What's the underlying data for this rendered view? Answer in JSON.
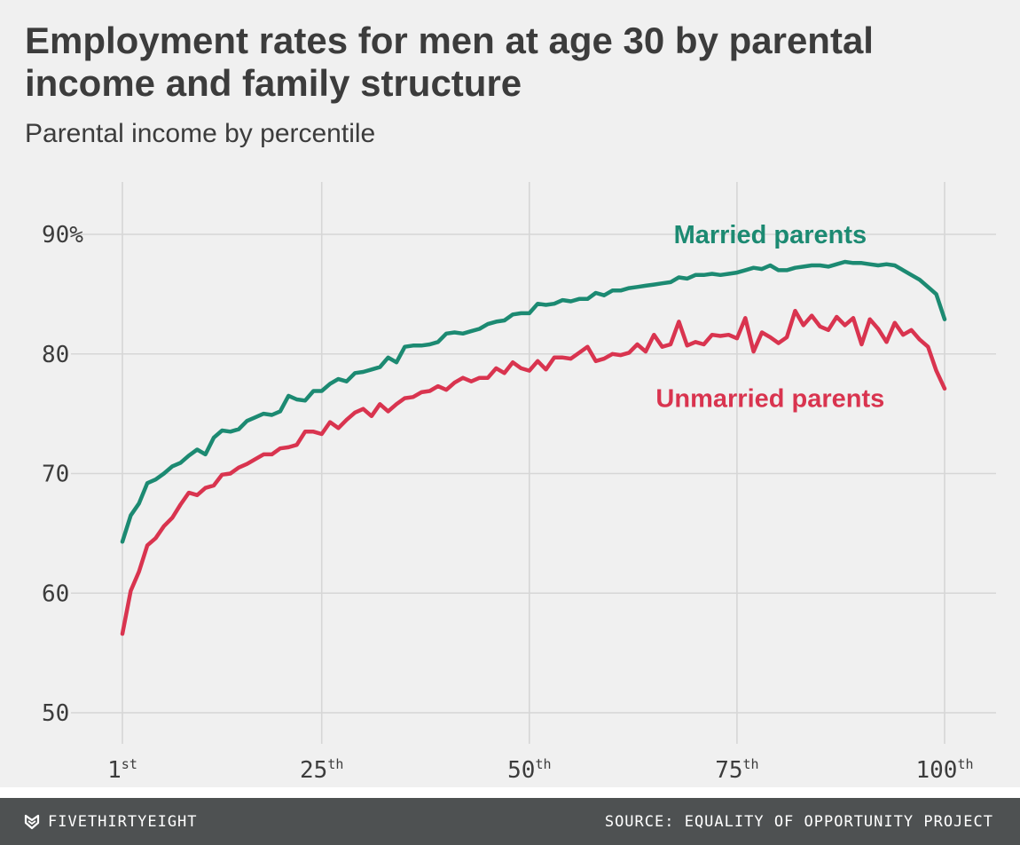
{
  "header": {
    "title": "Employment rates for men at age 30 by parental income and family structure",
    "subtitle": "Parental income by percentile"
  },
  "footer": {
    "brand": "FIVETHIRTYEIGHT",
    "brand_icon": "fivethirtyeight-logo-icon",
    "source": "SOURCE: EQUALITY OF OPPORTUNITY PROJECT"
  },
  "colors": {
    "background": "#f0f0f0",
    "grid": "#d6d6d6",
    "married": "#1c8a72",
    "unmarried": "#d9344f",
    "text": "#3c3c3c",
    "footer": "#4e5152"
  },
  "chart_data": {
    "type": "line",
    "title": "Employment rates for men at age 30 by parental income and family structure",
    "subtitle": "Parental income by percentile",
    "xlabel": "",
    "ylabel": "",
    "xlim": [
      1,
      100
    ],
    "ylim": [
      50,
      90
    ],
    "grid": true,
    "x_ticks": [
      {
        "value": 1,
        "num": "1",
        "suffix": "st"
      },
      {
        "value": 25,
        "num": "25",
        "suffix": "th"
      },
      {
        "value": 50,
        "num": "50",
        "suffix": "th"
      },
      {
        "value": 75,
        "num": "75",
        "suffix": "th"
      },
      {
        "value": 100,
        "num": "100",
        "suffix": "th"
      }
    ],
    "y_ticks": [
      {
        "value": 90,
        "label": "90%"
      },
      {
        "value": 80,
        "label": "80"
      },
      {
        "value": 70,
        "label": "70"
      },
      {
        "value": 60,
        "label": "60"
      },
      {
        "value": 50,
        "label": "50"
      }
    ],
    "x": [
      1,
      2,
      3,
      4,
      5,
      6,
      7,
      8,
      9,
      10,
      11,
      12,
      13,
      14,
      15,
      16,
      17,
      18,
      19,
      20,
      21,
      22,
      23,
      24,
      25,
      26,
      27,
      28,
      29,
      30,
      31,
      32,
      33,
      34,
      35,
      36,
      37,
      38,
      39,
      40,
      41,
      42,
      43,
      44,
      45,
      46,
      47,
      48,
      49,
      50,
      51,
      52,
      53,
      54,
      55,
      56,
      57,
      58,
      59,
      60,
      61,
      62,
      63,
      64,
      65,
      66,
      67,
      68,
      69,
      70,
      71,
      72,
      73,
      74,
      75,
      76,
      77,
      78,
      79,
      80,
      81,
      82,
      83,
      84,
      85,
      86,
      87,
      88,
      89,
      90,
      91,
      92,
      93,
      94,
      95,
      96,
      97,
      98,
      99,
      100
    ],
    "series": [
      {
        "name": "Married parents",
        "color": "#1c8a72",
        "label_anchor_x": 79,
        "label_anchor_y": 90,
        "values": [
          64.3,
          66.5,
          67.5,
          69.2,
          69.5,
          70.0,
          70.6,
          70.9,
          71.5,
          72.0,
          71.6,
          73.0,
          73.6,
          73.5,
          73.7,
          74.4,
          74.7,
          75.0,
          74.9,
          75.2,
          76.5,
          76.2,
          76.1,
          76.9,
          76.9,
          77.5,
          77.9,
          77.7,
          78.4,
          78.5,
          78.7,
          78.9,
          79.7,
          79.3,
          80.6,
          80.7,
          80.7,
          80.8,
          81.0,
          81.7,
          81.8,
          81.7,
          81.9,
          82.1,
          82.5,
          82.7,
          82.8,
          83.3,
          83.4,
          83.4,
          84.2,
          84.1,
          84.2,
          84.5,
          84.4,
          84.6,
          84.6,
          85.1,
          84.9,
          85.3,
          85.3,
          85.5,
          85.6,
          85.7,
          85.8,
          85.9,
          86.0,
          86.4,
          86.3,
          86.6,
          86.6,
          86.7,
          86.6,
          86.7,
          86.8,
          87.0,
          87.2,
          87.1,
          87.4,
          87.0,
          87.0,
          87.2,
          87.3,
          87.4,
          87.4,
          87.3,
          87.5,
          87.7,
          87.6,
          87.6,
          87.5,
          87.4,
          87.5,
          87.4,
          87.0,
          86.6,
          86.2,
          85.6,
          85.0,
          82.9
        ]
      },
      {
        "name": "Unmarried parents",
        "color": "#d9344f",
        "label_anchor_x": 79,
        "label_anchor_y": 76.3,
        "values": [
          56.6,
          60.2,
          61.8,
          64.0,
          64.6,
          65.6,
          66.3,
          67.4,
          68.4,
          68.2,
          68.8,
          69.0,
          69.9,
          70.0,
          70.5,
          70.8,
          71.2,
          71.6,
          71.6,
          72.1,
          72.2,
          72.4,
          73.5,
          73.5,
          73.3,
          74.3,
          73.8,
          74.5,
          75.1,
          75.4,
          74.8,
          75.8,
          75.2,
          75.8,
          76.3,
          76.4,
          76.8,
          76.9,
          77.3,
          77.0,
          77.6,
          78.0,
          77.7,
          78.0,
          78.0,
          78.8,
          78.4,
          79.3,
          78.8,
          78.6,
          79.4,
          78.7,
          79.7,
          79.7,
          79.6,
          80.1,
          80.6,
          79.4,
          79.6,
          80.0,
          79.9,
          80.1,
          80.8,
          80.2,
          81.6,
          80.6,
          80.8,
          82.7,
          80.7,
          81.0,
          80.8,
          81.6,
          81.5,
          81.6,
          81.3,
          83.0,
          80.2,
          81.8,
          81.4,
          80.9,
          81.4,
          83.6,
          82.4,
          83.2,
          82.3,
          82.0,
          83.1,
          82.4,
          83.0,
          80.8,
          82.9,
          82.1,
          81.0,
          82.6,
          81.6,
          82.0,
          81.2,
          80.6,
          78.6,
          77.1
        ]
      }
    ]
  }
}
